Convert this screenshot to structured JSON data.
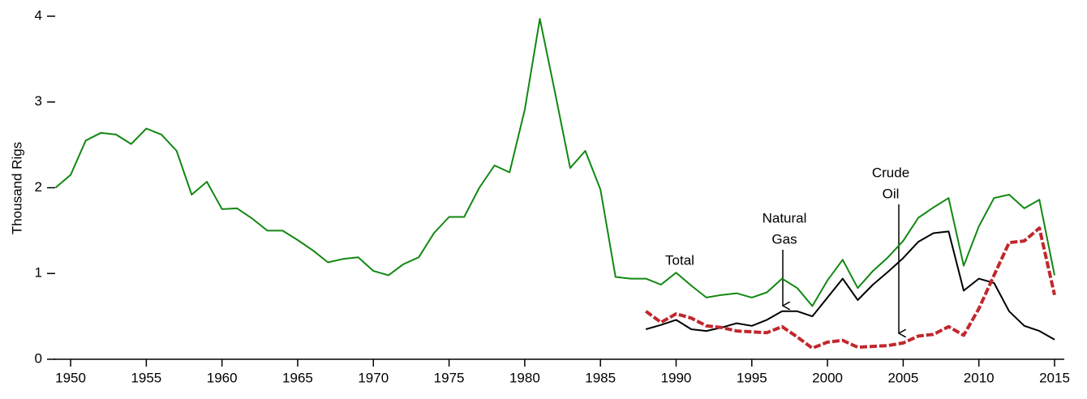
{
  "chart_data": {
    "type": "line",
    "ylabel": "Thousand Rigs",
    "x": [
      1949,
      1950,
      1951,
      1952,
      1953,
      1954,
      1955,
      1956,
      1957,
      1958,
      1959,
      1960,
      1961,
      1962,
      1963,
      1964,
      1965,
      1966,
      1967,
      1968,
      1969,
      1970,
      1971,
      1972,
      1973,
      1974,
      1975,
      1976,
      1977,
      1978,
      1979,
      1980,
      1981,
      1982,
      1983,
      1984,
      1985,
      1986,
      1987,
      1988,
      1989,
      1990,
      1991,
      1992,
      1993,
      1994,
      1995,
      1996,
      1997,
      1998,
      1999,
      2000,
      2001,
      2002,
      2003,
      2004,
      2005,
      2006,
      2007,
      2008,
      2009,
      2010,
      2011,
      2012,
      2013,
      2014,
      2015
    ],
    "series": [
      {
        "name": "Total",
        "color": "#118811",
        "dashed": false,
        "values": [
          2.0,
          2.15,
          2.55,
          2.64,
          2.62,
          2.51,
          2.69,
          2.62,
          2.43,
          1.92,
          2.07,
          1.75,
          1.76,
          1.64,
          1.5,
          1.5,
          1.39,
          1.27,
          1.13,
          1.17,
          1.19,
          1.03,
          0.98,
          1.11,
          1.19,
          1.47,
          1.66,
          1.66,
          2.0,
          2.26,
          2.18,
          2.91,
          3.97,
          3.11,
          2.23,
          2.43,
          1.98,
          0.96,
          0.94,
          0.94,
          0.87,
          1.01,
          0.86,
          0.72,
          0.75,
          0.77,
          0.72,
          0.78,
          0.94,
          0.83,
          0.62,
          0.92,
          1.16,
          0.83,
          1.03,
          1.19,
          1.38,
          1.65,
          1.77,
          1.88,
          1.09,
          1.55,
          1.88,
          1.92,
          1.76,
          1.86,
          0.98
        ]
      },
      {
        "name": "Natural Gas",
        "color": "#000000",
        "dashed": false,
        "values": [
          null,
          null,
          null,
          null,
          null,
          null,
          null,
          null,
          null,
          null,
          null,
          null,
          null,
          null,
          null,
          null,
          null,
          null,
          null,
          null,
          null,
          null,
          null,
          null,
          null,
          null,
          null,
          null,
          null,
          null,
          null,
          null,
          null,
          null,
          null,
          null,
          null,
          null,
          null,
          0.35,
          0.4,
          0.46,
          0.35,
          0.33,
          0.37,
          0.42,
          0.39,
          0.46,
          0.56,
          0.56,
          0.5,
          0.72,
          0.94,
          0.69,
          0.87,
          1.02,
          1.18,
          1.37,
          1.47,
          1.49,
          0.8,
          0.94,
          0.89,
          0.56,
          0.39,
          0.33,
          0.23
        ]
      },
      {
        "name": "Crude Oil",
        "color": "#c1272d",
        "dashed": true,
        "values": [
          null,
          null,
          null,
          null,
          null,
          null,
          null,
          null,
          null,
          null,
          null,
          null,
          null,
          null,
          null,
          null,
          null,
          null,
          null,
          null,
          null,
          null,
          null,
          null,
          null,
          null,
          null,
          null,
          null,
          null,
          null,
          null,
          null,
          null,
          null,
          null,
          null,
          null,
          null,
          0.56,
          0.43,
          0.53,
          0.48,
          0.39,
          0.37,
          0.33,
          0.32,
          0.31,
          0.38,
          0.26,
          0.13,
          0.2,
          0.22,
          0.14,
          0.15,
          0.16,
          0.19,
          0.27,
          0.29,
          0.38,
          0.28,
          0.59,
          0.98,
          1.36,
          1.38,
          1.53,
          0.75
        ]
      }
    ],
    "annotations": [
      [
        "Total"
      ],
      [
        "Natural",
        "Gas"
      ],
      [
        "Crude",
        "Oil"
      ]
    ],
    "xlim": [
      1949,
      2015
    ],
    "xticks": [
      1950,
      1955,
      1960,
      1965,
      1970,
      1975,
      1980,
      1985,
      1990,
      1995,
      2000,
      2005,
      2010,
      2015
    ],
    "ylim": [
      0,
      4
    ],
    "yticks": [
      0,
      1,
      2,
      3,
      4
    ],
    "grid": false
  }
}
